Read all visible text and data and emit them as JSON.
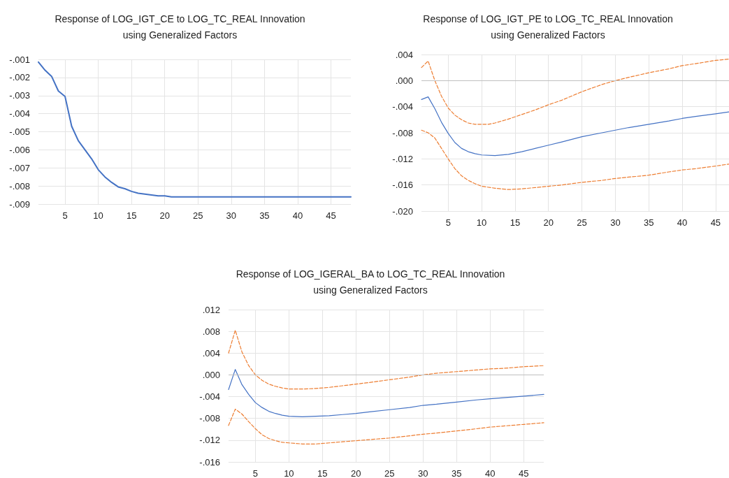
{
  "chart_data": [
    {
      "type": "line",
      "title": "Response of LOG_IGT_CE to LOG_TC_REAL Innovation\nusing Generalized Factors",
      "xlim": [
        1,
        48
      ],
      "xticks": [
        5,
        10,
        15,
        20,
        25,
        30,
        35,
        40,
        45
      ],
      "ylim": [
        -0.009,
        -0.001
      ],
      "yticks": [
        {
          "value": -0.009,
          "label": "-.009"
        },
        {
          "value": -0.008,
          "label": "-.008"
        },
        {
          "value": -0.007,
          "label": "-.007"
        },
        {
          "value": -0.006,
          "label": "-.006"
        },
        {
          "value": -0.005,
          "label": "-.005"
        },
        {
          "value": -0.004,
          "label": "-.004"
        },
        {
          "value": -0.003,
          "label": "-.003"
        },
        {
          "value": -0.002,
          "label": "-.002"
        },
        {
          "value": -0.001,
          "label": "-.001"
        }
      ],
      "grid": true,
      "marker": "none",
      "series": [
        {
          "color": "#4472c4",
          "line_style": "solid",
          "x": [
            1,
            2,
            3,
            4,
            5,
            6,
            7,
            8,
            9,
            10,
            11,
            12,
            13,
            14,
            15,
            16,
            17,
            18,
            19,
            20,
            21,
            25,
            30,
            35,
            40,
            45,
            48
          ],
          "values": [
            -0.00115,
            -0.0016,
            -0.00195,
            -0.00275,
            -0.00305,
            -0.0047,
            -0.0055,
            -0.006,
            -0.0065,
            -0.0071,
            -0.0075,
            -0.0078,
            -0.00805,
            -0.00815,
            -0.0083,
            -0.0084,
            -0.00845,
            -0.0085,
            -0.00855,
            -0.00855,
            -0.0086,
            -0.0086,
            -0.0086,
            -0.0086,
            -0.0086,
            -0.0086,
            -0.0086
          ]
        }
      ]
    },
    {
      "type": "line",
      "title": "Response of LOG_IGT_PE to LOG_TC_REAL Innovation\nusing Generalized Factors",
      "xlim": [
        1,
        47
      ],
      "xticks": [
        5,
        10,
        15,
        20,
        25,
        30,
        35,
        40,
        45
      ],
      "ylim": [
        -0.02,
        0.004
      ],
      "yticks": [
        {
          "value": -0.02,
          "label": "-.020"
        },
        {
          "value": -0.016,
          "label": "-.016"
        },
        {
          "value": -0.012,
          "label": "-.012"
        },
        {
          "value": -0.008,
          "label": "-.008"
        },
        {
          "value": -0.004,
          "label": "-.004"
        },
        {
          "value": 0,
          "label": ".000"
        },
        {
          "value": 0.004,
          "label": ".004"
        }
      ],
      "grid": true,
      "marker": "none",
      "ref_lines": [
        {
          "axis": "y",
          "value": 0,
          "color": "#bfbfbf"
        }
      ],
      "series": [
        {
          "color": "#4472c4",
          "line_style": "solid",
          "x": [
            1,
            2,
            3,
            4,
            5,
            6,
            7,
            8,
            9,
            10,
            12,
            14,
            16,
            18,
            20,
            22,
            25,
            28,
            30,
            32,
            35,
            38,
            40,
            42,
            45,
            47
          ],
          "values": [
            -0.0029,
            -0.0025,
            -0.0043,
            -0.0064,
            -0.0081,
            -0.0095,
            -0.0104,
            -0.0109,
            -0.0112,
            -0.0114,
            -0.0115,
            -0.0113,
            -0.0109,
            -0.0104,
            -0.0099,
            -0.0094,
            -0.0086,
            -0.008,
            -0.0076,
            -0.0072,
            -0.0067,
            -0.0062,
            -0.0058,
            -0.0055,
            -0.0051,
            -0.0048
          ]
        },
        {
          "color": "#ed7d31",
          "line_style": "dashed",
          "x": [
            1,
            2,
            3,
            4,
            5,
            6,
            7,
            8,
            9,
            10,
            11,
            12,
            14,
            16,
            18,
            20,
            22,
            25,
            28,
            30,
            32,
            35,
            38,
            40,
            42,
            45,
            47
          ],
          "values": [
            0.002,
            0.003,
            0.0,
            -0.0024,
            -0.0042,
            -0.0053,
            -0.006,
            -0.0065,
            -0.0067,
            -0.0067,
            -0.0067,
            -0.0065,
            -0.0059,
            -0.0052,
            -0.0045,
            -0.0037,
            -0.003,
            -0.0017,
            -0.0006,
            0.0,
            0.0005,
            0.0012,
            0.0018,
            0.0023,
            0.0026,
            0.0031,
            0.0033
          ]
        },
        {
          "color": "#ed7d31",
          "line_style": "dashed",
          "x": [
            1,
            2,
            3,
            4,
            5,
            6,
            7,
            8,
            9,
            10,
            12,
            14,
            16,
            18,
            20,
            22,
            25,
            28,
            30,
            32,
            35,
            38,
            40,
            42,
            45,
            47
          ],
          "values": [
            -0.0076,
            -0.008,
            -0.0088,
            -0.0104,
            -0.012,
            -0.0135,
            -0.0146,
            -0.0153,
            -0.0158,
            -0.0162,
            -0.0165,
            -0.0167,
            -0.0166,
            -0.0164,
            -0.0162,
            -0.016,
            -0.0156,
            -0.0153,
            -0.015,
            -0.0148,
            -0.0145,
            -0.014,
            -0.0137,
            -0.0135,
            -0.0131,
            -0.0128
          ]
        }
      ]
    },
    {
      "type": "line",
      "title": "Response of LOG_IGERAL_BA to LOG_TC_REAL Innovation\nusing Generalized Factors",
      "xlim": [
        1,
        48
      ],
      "xticks": [
        5,
        10,
        15,
        20,
        25,
        30,
        35,
        40,
        45
      ],
      "ylim": [
        -0.016,
        0.012
      ],
      "yticks": [
        {
          "value": -0.016,
          "label": "-.016"
        },
        {
          "value": -0.012,
          "label": "-.012"
        },
        {
          "value": -0.008,
          "label": "-.008"
        },
        {
          "value": -0.004,
          "label": "-.004"
        },
        {
          "value": 0,
          "label": ".000"
        },
        {
          "value": 0.004,
          "label": ".004"
        },
        {
          "value": 0.008,
          "label": ".008"
        },
        {
          "value": 0.012,
          "label": ".012"
        }
      ],
      "grid": true,
      "marker": "none",
      "ref_lines": [
        {
          "axis": "y",
          "value": 0,
          "color": "#bfbfbf"
        }
      ],
      "series": [
        {
          "color": "#4472c4",
          "line_style": "solid",
          "x": [
            1,
            2,
            3,
            4,
            5,
            6,
            7,
            8,
            9,
            10,
            12,
            14,
            16,
            18,
            20,
            22,
            25,
            28,
            30,
            32,
            35,
            38,
            40,
            42,
            45,
            48
          ],
          "values": [
            -0.0027,
            0.001,
            -0.0018,
            -0.0036,
            -0.0051,
            -0.006,
            -0.0067,
            -0.0071,
            -0.0074,
            -0.0076,
            -0.0077,
            -0.0076,
            -0.0075,
            -0.0073,
            -0.0071,
            -0.0068,
            -0.0064,
            -0.006,
            -0.0056,
            -0.0054,
            -0.005,
            -0.0046,
            -0.0044,
            -0.0042,
            -0.0039,
            -0.0036
          ]
        },
        {
          "color": "#ed7d31",
          "line_style": "dashed",
          "x": [
            1,
            2,
            3,
            4,
            5,
            6,
            7,
            8,
            9,
            10,
            12,
            14,
            16,
            18,
            20,
            22,
            25,
            28,
            30,
            32,
            35,
            38,
            40,
            42,
            45,
            48
          ],
          "values": [
            0.004,
            0.0082,
            0.0042,
            0.0017,
            0.0,
            -0.001,
            -0.0017,
            -0.0021,
            -0.0024,
            -0.0026,
            -0.0026,
            -0.0025,
            -0.0023,
            -0.002,
            -0.0017,
            -0.0014,
            -0.0009,
            -0.0004,
            0.0,
            0.0003,
            0.0006,
            0.0009,
            0.0011,
            0.0012,
            0.0015,
            0.0017
          ]
        },
        {
          "color": "#ed7d31",
          "line_style": "dashed",
          "x": [
            1,
            2,
            3,
            4,
            5,
            6,
            7,
            8,
            9,
            10,
            12,
            14,
            16,
            18,
            20,
            22,
            25,
            28,
            30,
            32,
            35,
            38,
            40,
            42,
            45,
            48
          ],
          "values": [
            -0.0093,
            -0.0063,
            -0.0072,
            -0.0086,
            -0.0099,
            -0.011,
            -0.0117,
            -0.0121,
            -0.0124,
            -0.0125,
            -0.0127,
            -0.0127,
            -0.0125,
            -0.0123,
            -0.0121,
            -0.0119,
            -0.0116,
            -0.0112,
            -0.0109,
            -0.0107,
            -0.0103,
            -0.0099,
            -0.0096,
            -0.0094,
            -0.0091,
            -0.0088
          ]
        }
      ]
    }
  ]
}
